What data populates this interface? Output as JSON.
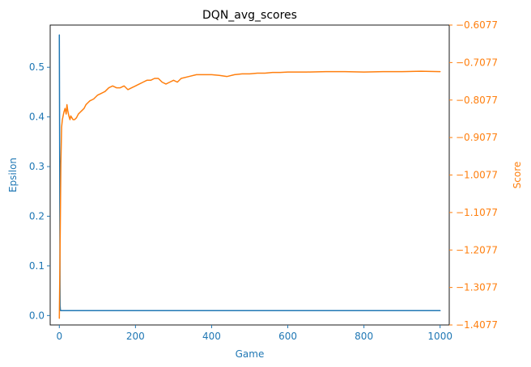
{
  "chart_data": {
    "type": "line",
    "title": "DQN_avg_scores",
    "x": {
      "label": "Game",
      "range": [
        -24,
        1024
      ],
      "ticks": [
        0,
        200,
        400,
        600,
        800,
        1000
      ]
    },
    "y_left": {
      "label": "Epsilon",
      "range": [
        -0.019,
        0.585
      ],
      "ticks": [
        0.0,
        0.1,
        0.2,
        0.3,
        0.4,
        0.5
      ],
      "tick_labels": [
        "0.0",
        "0.1",
        "0.2",
        "0.3",
        "0.4",
        "0.5"
      ]
    },
    "y_right": {
      "label": "Score",
      "range": [
        -1.4077,
        -0.6077
      ],
      "ticks": [
        -1.4077,
        -1.3077,
        -1.2077,
        -1.1077,
        -1.0077,
        -0.9077,
        -0.8077,
        -0.7077,
        -0.6077
      ],
      "tick_labels": [
        "−1.4077",
        "−1.3077",
        "−1.2077",
        "−1.1077",
        "−1.0077",
        "−0.9077",
        "−0.8077",
        "−0.7077",
        "−0.6077"
      ]
    },
    "series": [
      {
        "axis": "left",
        "color": "#1f77b4",
        "x": [
          0,
          1,
          2,
          3,
          1000
        ],
        "y": [
          0.565,
          0.3,
          0.02,
          0.01,
          0.01
        ]
      },
      {
        "axis": "right",
        "color": "#ff7f0e",
        "x": [
          0,
          2,
          4,
          6,
          8,
          10,
          12,
          15,
          18,
          20,
          22,
          25,
          28,
          30,
          33,
          36,
          40,
          45,
          50,
          55,
          60,
          65,
          70,
          75,
          80,
          90,
          100,
          110,
          120,
          130,
          140,
          150,
          160,
          170,
          180,
          190,
          200,
          210,
          220,
          230,
          240,
          250,
          260,
          270,
          280,
          290,
          300,
          310,
          320,
          340,
          360,
          380,
          400,
          420,
          440,
          460,
          480,
          500,
          520,
          540,
          560,
          580,
          600,
          650,
          700,
          750,
          800,
          850,
          900,
          950,
          1000
        ],
        "y": [
          -1.39,
          -1.2,
          -0.98,
          -0.88,
          -0.86,
          -0.85,
          -0.84,
          -0.83,
          -0.845,
          -0.82,
          -0.835,
          -0.85,
          -0.86,
          -0.85,
          -0.855,
          -0.86,
          -0.86,
          -0.855,
          -0.845,
          -0.84,
          -0.835,
          -0.83,
          -0.82,
          -0.815,
          -0.81,
          -0.805,
          -0.795,
          -0.79,
          -0.785,
          -0.775,
          -0.77,
          -0.775,
          -0.775,
          -0.77,
          -0.78,
          -0.775,
          -0.77,
          -0.765,
          -0.76,
          -0.755,
          -0.755,
          -0.75,
          -0.75,
          -0.76,
          -0.765,
          -0.76,
          -0.755,
          -0.76,
          -0.75,
          -0.745,
          -0.74,
          -0.74,
          -0.74,
          -0.742,
          -0.745,
          -0.74,
          -0.738,
          -0.738,
          -0.736,
          -0.736,
          -0.734,
          -0.734,
          -0.733,
          -0.733,
          -0.732,
          -0.732,
          -0.733,
          -0.732,
          -0.732,
          -0.731,
          -0.732
        ]
      }
    ],
    "grid": false,
    "legend": "none"
  }
}
